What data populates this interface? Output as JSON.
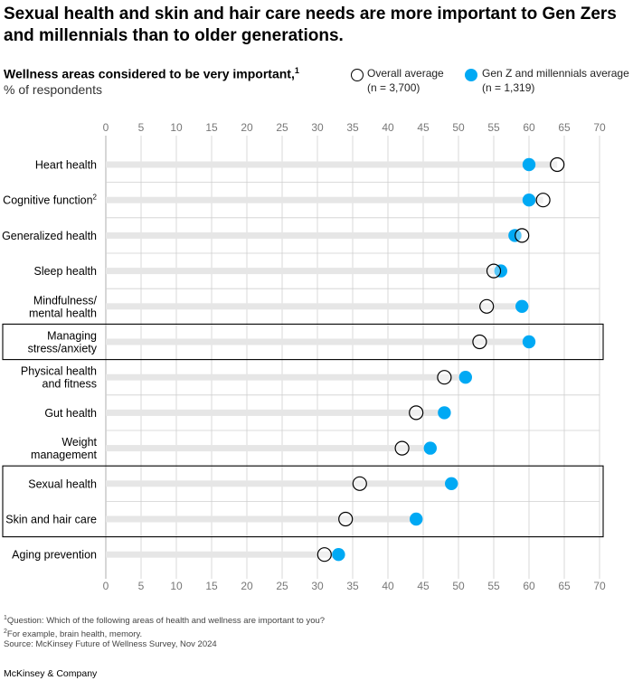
{
  "title": "Sexual health and skin and hair care needs are more important to Gen Zers and millennials than to older generations.",
  "chart_data": {
    "type": "dot-plot",
    "subtitle": "Wellness areas considered to be very important,",
    "subtitle_note": "1",
    "unit": "% of respondents",
    "xlim": [
      0,
      70
    ],
    "xticks": [
      "0",
      "5",
      "10",
      "15",
      "20",
      "25",
      "30",
      "35",
      "40",
      "45",
      "50",
      "55",
      "60",
      "65",
      "70"
    ],
    "grid": true,
    "legend": [
      {
        "name": "Overall average",
        "n": "(n = 3,700)",
        "style": "open-circle"
      },
      {
        "name": "Gen Z and millennials average",
        "n": "(n = 1,319)",
        "style": "filled-circle"
      }
    ],
    "categories": [
      {
        "lines": [
          "Heart health"
        ],
        "overall": 64,
        "genz": 60
      },
      {
        "lines": [
          "Cognitive function"
        ],
        "sup": "2",
        "overall": 62,
        "genz": 60
      },
      {
        "lines": [
          "Generalized health"
        ],
        "overall": 59,
        "genz": 58
      },
      {
        "lines": [
          "Sleep health"
        ],
        "overall": 55,
        "genz": 56
      },
      {
        "lines": [
          "Mindfulness/",
          "mental health"
        ],
        "overall": 54,
        "genz": 59
      },
      {
        "lines": [
          "Managing",
          "stress/anxiety"
        ],
        "overall": 53,
        "genz": 60,
        "highlight": true
      },
      {
        "lines": [
          "Physical health",
          "and fitness"
        ],
        "overall": 48,
        "genz": 51
      },
      {
        "lines": [
          "Gut health"
        ],
        "overall": 44,
        "genz": 48
      },
      {
        "lines": [
          "Weight",
          "management"
        ],
        "overall": 42,
        "genz": 46
      },
      {
        "lines": [
          "Sexual health"
        ],
        "overall": 36,
        "genz": 49,
        "highlight": true
      },
      {
        "lines": [
          "Skin and hair care"
        ],
        "overall": 34,
        "genz": 44,
        "highlight": true
      },
      {
        "lines": [
          "Aging prevention"
        ],
        "overall": 31,
        "genz": 33
      }
    ]
  },
  "footnotes": [
    {
      "sup": "1",
      "text": "Question: Which of the following areas of health and wellness are important to you?"
    },
    {
      "sup": "2",
      "text": "For example, brain health, memory."
    },
    {
      "sup": "",
      "text": "Source: McKinsey Future of Wellness Survey, Nov 2024"
    }
  ],
  "brand": "McKinsey & Company",
  "colors": {
    "genz": "#00a9f4",
    "track": "#e6e6e6",
    "grid": "#cfcfcf",
    "axis": "#9a9a9a"
  }
}
